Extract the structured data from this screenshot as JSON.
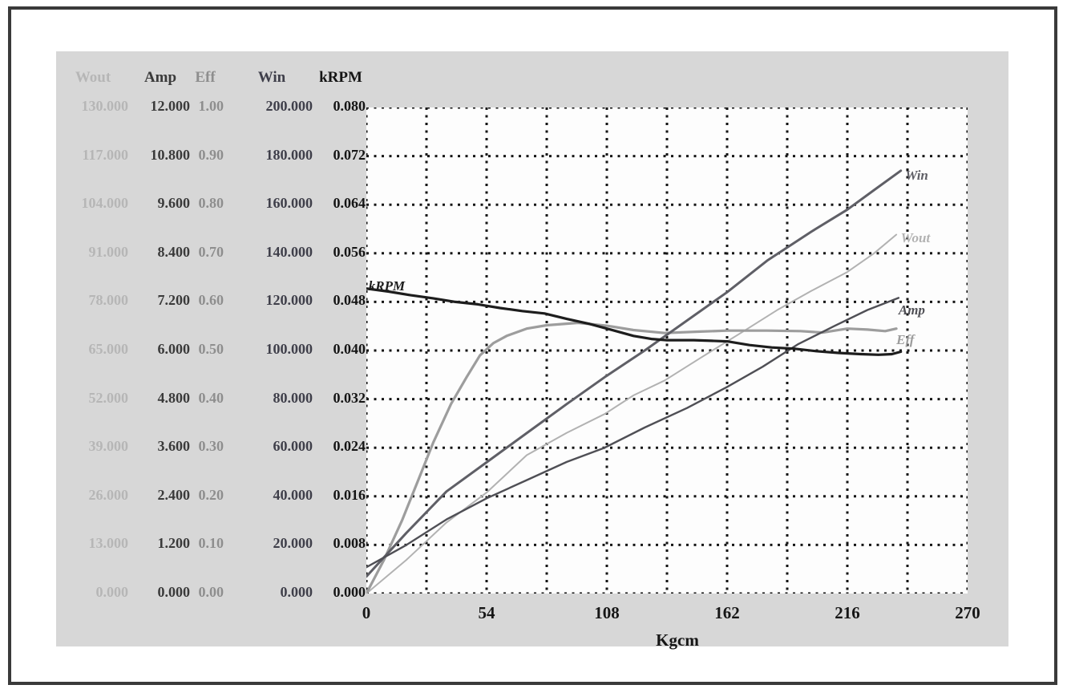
{
  "table": {
    "columns": [
      {
        "header": "Wout",
        "color": "#b6b6b6",
        "values": [
          "130.000",
          "117.000",
          "104.000",
          "91.000",
          "78.000",
          "65.000",
          "52.000",
          "39.000",
          "26.000",
          "13.000",
          "0.000"
        ]
      },
      {
        "header": "Amp",
        "color": "#3a3a3a",
        "values": [
          "12.000",
          "10.800",
          "9.600",
          "8.400",
          "7.200",
          "6.000",
          "4.800",
          "3.600",
          "2.400",
          "1.200",
          "0.000"
        ]
      },
      {
        "header": "Eff",
        "color": "#8e8e8e",
        "values": [
          "1.00",
          "0.90",
          "0.80",
          "0.70",
          "0.60",
          "0.50",
          "0.40",
          "0.30",
          "0.20",
          "0.10",
          "0.00"
        ]
      },
      {
        "header": "Win",
        "color": "#3f3f4a",
        "values": [
          "200.000",
          "180.000",
          "160.000",
          "140.000",
          "120.000",
          "100.000",
          "80.000",
          "60.000",
          "40.000",
          "20.000",
          "0.000"
        ]
      },
      {
        "header": "kRPM",
        "color": "#151515",
        "values": [
          "0.080",
          "0.072",
          "0.064",
          "0.056",
          "0.048",
          "0.040",
          "0.032",
          "0.024",
          "0.016",
          "0.008",
          "0.000"
        ]
      }
    ]
  },
  "chart_data": {
    "type": "line",
    "title": "",
    "xlabel": "Kgcm",
    "x_ticks": [
      "0",
      "54",
      "108",
      "162",
      "216",
      "270"
    ],
    "xlim": [
      0,
      270
    ],
    "grid": {
      "columns": 10,
      "rows": 10,
      "style": "dotted",
      "color": "#141414"
    },
    "axis_maxima": {
      "Wout": 130,
      "Amp": 12,
      "Eff": 1.0,
      "Win": 200,
      "kRPM": 0.08
    },
    "series": [
      {
        "name": "Wout",
        "color": "#b2b2b2",
        "width": 2,
        "axis_max": 130,
        "label_at": [
          240,
          95
        ],
        "points": [
          [
            0,
            0
          ],
          [
            18,
            9
          ],
          [
            36,
            19
          ],
          [
            54,
            27
          ],
          [
            72,
            37
          ],
          [
            90,
            43
          ],
          [
            107,
            48
          ],
          [
            120,
            53
          ],
          [
            134,
            57
          ],
          [
            150,
            63
          ],
          [
            169,
            70
          ],
          [
            185,
            76
          ],
          [
            200,
            81
          ],
          [
            216,
            86
          ],
          [
            228,
            91
          ],
          [
            238,
            96
          ]
        ]
      },
      {
        "name": "Eff",
        "color": "#9d9d9d",
        "width": 3.2,
        "axis_max": 1.0,
        "label_at": [
          238,
          0.522
        ],
        "points": [
          [
            0,
            0
          ],
          [
            8,
            0.07
          ],
          [
            16,
            0.15
          ],
          [
            23,
            0.23
          ],
          [
            30,
            0.31
          ],
          [
            38,
            0.39
          ],
          [
            45,
            0.445
          ],
          [
            51,
            0.49
          ],
          [
            57,
            0.515
          ],
          [
            63,
            0.53
          ],
          [
            72,
            0.545
          ],
          [
            81,
            0.552
          ],
          [
            95,
            0.557
          ],
          [
            108,
            0.551
          ],
          [
            120,
            0.542
          ],
          [
            134,
            0.536
          ],
          [
            150,
            0.539
          ],
          [
            162,
            0.541
          ],
          [
            180,
            0.541
          ],
          [
            195,
            0.54
          ],
          [
            205,
            0.537
          ],
          [
            216,
            0.545
          ],
          [
            225,
            0.543
          ],
          [
            233,
            0.54
          ],
          [
            238,
            0.545
          ]
        ]
      },
      {
        "name": "Win",
        "color": "#5f5f66",
        "width": 3,
        "axis_max": 200,
        "label_at": [
          242,
          172
        ],
        "points": [
          [
            0,
            7
          ],
          [
            18,
            25
          ],
          [
            36,
            42
          ],
          [
            54,
            54
          ],
          [
            72,
            66
          ],
          [
            90,
            78
          ],
          [
            107,
            89
          ],
          [
            125,
            100
          ],
          [
            145,
            113
          ],
          [
            162,
            124
          ],
          [
            180,
            137
          ],
          [
            200,
            149
          ],
          [
            216,
            158
          ],
          [
            228,
            166
          ],
          [
            240,
            174
          ]
        ]
      },
      {
        "name": "Amp",
        "color": "#4f4f55",
        "width": 2.4,
        "axis_max": 12,
        "label_at": [
          239,
          7.0
        ],
        "points": [
          [
            0,
            0.65
          ],
          [
            18,
            1.2
          ],
          [
            36,
            1.83
          ],
          [
            54,
            2.35
          ],
          [
            72,
            2.8
          ],
          [
            90,
            3.25
          ],
          [
            107,
            3.6
          ],
          [
            125,
            4.1
          ],
          [
            144,
            4.58
          ],
          [
            162,
            5.1
          ],
          [
            178,
            5.6
          ],
          [
            194,
            6.16
          ],
          [
            210,
            6.6
          ],
          [
            225,
            7.0
          ],
          [
            239,
            7.3
          ]
        ]
      },
      {
        "name": "kRPM",
        "color": "#1d1d1d",
        "width": 3.2,
        "axis_max": 0.08,
        "label_at": [
          1,
          0.0506
        ],
        "points": [
          [
            0,
            0.0502
          ],
          [
            10,
            0.0497
          ],
          [
            20,
            0.0491
          ],
          [
            30,
            0.0486
          ],
          [
            40,
            0.048
          ],
          [
            50,
            0.0476
          ],
          [
            60,
            0.047
          ],
          [
            70,
            0.0465
          ],
          [
            80,
            0.0461
          ],
          [
            90,
            0.0452
          ],
          [
            100,
            0.0444
          ],
          [
            110,
            0.0434
          ],
          [
            120,
            0.0424
          ],
          [
            128,
            0.0419
          ],
          [
            135,
            0.0417
          ],
          [
            147,
            0.0417
          ],
          [
            155,
            0.0416
          ],
          [
            162,
            0.0415
          ],
          [
            172,
            0.0409
          ],
          [
            182,
            0.0405
          ],
          [
            192,
            0.0403
          ],
          [
            202,
            0.0399
          ],
          [
            212,
            0.0396
          ],
          [
            222,
            0.0394
          ],
          [
            230,
            0.0393
          ],
          [
            236,
            0.0394
          ],
          [
            240,
            0.0398
          ]
        ]
      }
    ]
  }
}
